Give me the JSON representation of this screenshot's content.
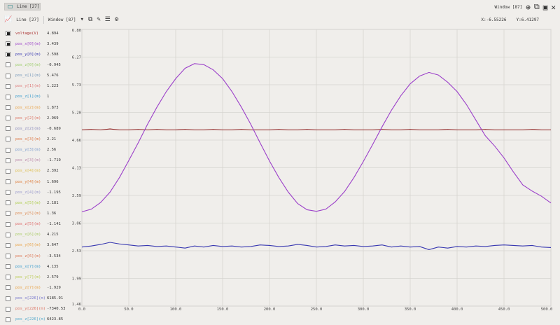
{
  "tab": {
    "label": "Line [27]"
  },
  "toolbar": {
    "line_label": "Line [27]",
    "window_label": "Window [87]"
  },
  "topright": {
    "window_label": "Window [87]"
  },
  "coords": {
    "x": "X:-6.55226",
    "y": "Y:6.41297"
  },
  "channels": [
    {
      "label": "voltage(V)",
      "value": "4.894",
      "checked": true,
      "color": "#a33"
    },
    {
      "label": "pos_x[0](m)",
      "value": "3.439",
      "checked": true,
      "color": "#9b3fc9"
    },
    {
      "label": "pos_y[0](m)",
      "value": "2.598",
      "checked": true,
      "color": "#3636b0"
    },
    {
      "label": "pos_z[0](m)",
      "value": "-0.945",
      "checked": false,
      "color": "#9c6"
    },
    {
      "label": "pos_x[1](m)",
      "value": "5.476",
      "checked": false,
      "color": "#79b"
    },
    {
      "label": "pos_y[1](m)",
      "value": "1.223",
      "checked": false,
      "color": "#d77"
    },
    {
      "label": "pos_z[1](m)",
      "value": "1",
      "checked": false,
      "color": "#39c"
    },
    {
      "label": "pos_x[2](m)",
      "value": "1.873",
      "checked": false,
      "color": "#e9a040"
    },
    {
      "label": "pos_y[2](m)",
      "value": "2.969",
      "checked": false,
      "color": "#d76"
    },
    {
      "label": "pos_z[2](m)",
      "value": "-0.689",
      "checked": false,
      "color": "#88b"
    },
    {
      "label": "pos_x[3](m)",
      "value": "2.21",
      "checked": false,
      "color": "#d74"
    },
    {
      "label": "pos_y[3](m)",
      "value": "2.56",
      "checked": false,
      "color": "#79c"
    },
    {
      "label": "pos_z[3](m)",
      "value": "-1.719",
      "checked": false,
      "color": "#b8a"
    },
    {
      "label": "pos_x[4](m)",
      "value": "2.392",
      "checked": false,
      "color": "#db4"
    },
    {
      "label": "pos_y[4](m)",
      "value": "1.696",
      "checked": false,
      "color": "#d73"
    },
    {
      "label": "pos_z[4](m)",
      "value": "-1.195",
      "checked": false,
      "color": "#99c"
    },
    {
      "label": "pos_x[5](m)",
      "value": "2.181",
      "checked": false,
      "color": "#ac4"
    },
    {
      "label": "pos_y[5](m)",
      "value": "1.36",
      "checked": false,
      "color": "#dd8a50"
    },
    {
      "label": "pos_z[5](m)",
      "value": "-1.141",
      "checked": false,
      "color": "#d66"
    },
    {
      "label": "pos_x[6](m)",
      "value": "4.215",
      "checked": false,
      "color": "#ac6"
    },
    {
      "label": "pos_y[6](m)",
      "value": "3.647",
      "checked": false,
      "color": "#e9a040"
    },
    {
      "label": "pos_z[6](m)",
      "value": "-3.534",
      "checked": false,
      "color": "#d75"
    },
    {
      "label": "pos_x[7](m)",
      "value": "4.135",
      "checked": false,
      "color": "#39c"
    },
    {
      "label": "pos_y[7](m)",
      "value": "2.579",
      "checked": false,
      "color": "#bc5"
    },
    {
      "label": "pos_z[7](m)",
      "value": "-1.929",
      "checked": false,
      "color": "#e9a040"
    },
    {
      "label": "pos_x[226](m)",
      "value": "6185.91",
      "checked": false,
      "color": "#77c"
    },
    {
      "label": "pos_y[226](m)",
      "value": "-7340.53",
      "checked": false,
      "color": "#d76"
    },
    {
      "label": "pos_z[226](m)",
      "value": "6423.85",
      "checked": false,
      "color": "#5ac"
    }
  ],
  "chart_data": {
    "type": "line",
    "xlim": [
      0,
      500
    ],
    "ylim": [
      1.46,
      6.8
    ],
    "x_ticks": [
      "0.0",
      "50.0",
      "100.0",
      "150.0",
      "200.0",
      "250.0",
      "300.0",
      "350.0",
      "400.0",
      "450.0",
      "500.0"
    ],
    "y_ticks": [
      "6.80",
      "6.27",
      "5.73",
      "5.20",
      "4.66",
      "4.13",
      "3.59",
      "3.06",
      "2.53",
      "1.99",
      "1.46"
    ],
    "grid": true,
    "x": [
      0,
      10,
      20,
      30,
      40,
      50,
      60,
      70,
      80,
      90,
      100,
      110,
      120,
      130,
      140,
      150,
      160,
      170,
      180,
      190,
      200,
      210,
      220,
      230,
      240,
      250,
      260,
      270,
      280,
      290,
      300,
      310,
      320,
      330,
      340,
      350,
      360,
      370,
      380,
      390,
      400,
      410,
      420,
      430,
      440,
      450,
      460,
      470,
      480,
      490,
      500
    ],
    "series": [
      {
        "name": "voltage(V)",
        "color": "#8b1a1a",
        "values": [
          4.86,
          4.87,
          4.86,
          4.88,
          4.86,
          4.86,
          4.87,
          4.86,
          4.87,
          4.86,
          4.86,
          4.87,
          4.86,
          4.86,
          4.87,
          4.86,
          4.86,
          4.87,
          4.86,
          4.86,
          4.86,
          4.87,
          4.86,
          4.86,
          4.87,
          4.86,
          4.86,
          4.86,
          4.87,
          4.86,
          4.86,
          4.86,
          4.87,
          4.86,
          4.86,
          4.87,
          4.86,
          4.86,
          4.86,
          4.87,
          4.86,
          4.86,
          4.86,
          4.87,
          4.86,
          4.86,
          4.86,
          4.86,
          4.87,
          4.86,
          4.86
        ]
      },
      {
        "name": "pos_x[0](m)",
        "color": "#9b3fc9",
        "values": [
          3.28,
          3.33,
          3.46,
          3.66,
          3.94,
          4.27,
          4.61,
          4.97,
          5.3,
          5.6,
          5.85,
          6.05,
          6.14,
          6.12,
          6.02,
          5.85,
          5.6,
          5.3,
          4.97,
          4.61,
          4.26,
          3.94,
          3.66,
          3.44,
          3.32,
          3.29,
          3.33,
          3.47,
          3.67,
          3.94,
          4.25,
          4.58,
          4.92,
          5.24,
          5.52,
          5.75,
          5.9,
          5.97,
          5.92,
          5.78,
          5.6,
          5.35,
          5.05,
          4.75,
          4.55,
          4.32,
          4.05,
          3.8,
          3.68,
          3.58,
          3.45
        ]
      },
      {
        "name": "pos_y[0](m)",
        "color": "#3636b0",
        "values": [
          2.6,
          2.62,
          2.65,
          2.69,
          2.66,
          2.64,
          2.62,
          2.63,
          2.61,
          2.62,
          2.6,
          2.58,
          2.62,
          2.6,
          2.63,
          2.61,
          2.62,
          2.6,
          2.61,
          2.64,
          2.63,
          2.61,
          2.62,
          2.65,
          2.63,
          2.6,
          2.61,
          2.64,
          2.62,
          2.63,
          2.61,
          2.62,
          2.64,
          2.6,
          2.62,
          2.6,
          2.61,
          2.55,
          2.6,
          2.58,
          2.61,
          2.6,
          2.62,
          2.61,
          2.63,
          2.64,
          2.63,
          2.62,
          2.63,
          2.6,
          2.59
        ]
      }
    ]
  }
}
